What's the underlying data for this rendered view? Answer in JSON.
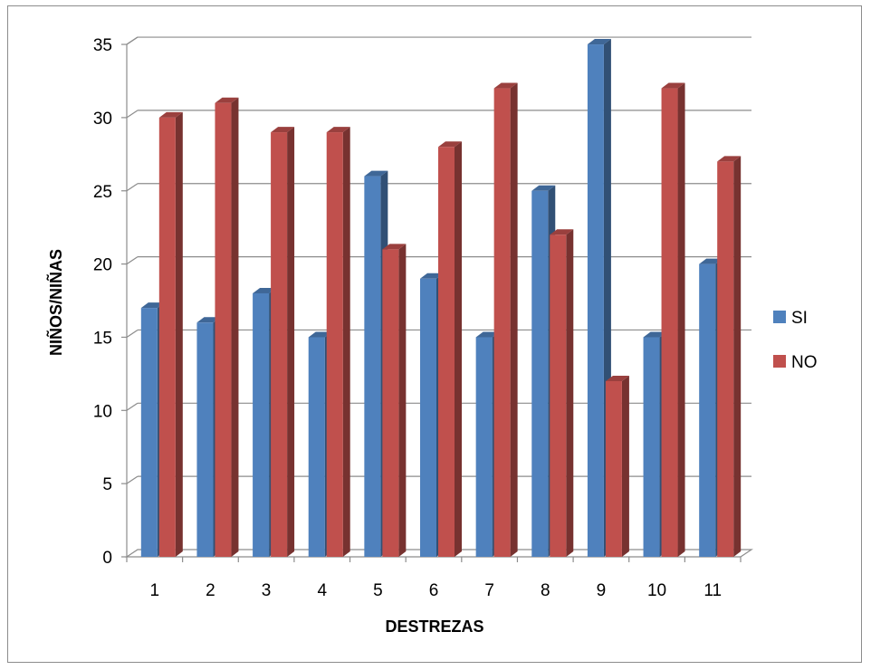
{
  "chart_data": {
    "type": "bar",
    "title": "",
    "xlabel": "DESTREZAS",
    "ylabel": "NIÑOS/NIÑAS",
    "categories": [
      "1",
      "2",
      "3",
      "4",
      "5",
      "6",
      "7",
      "8",
      "9",
      "10",
      "11"
    ],
    "series": [
      {
        "name": "SI",
        "color": "#4f81bd",
        "values": [
          17,
          16,
          18,
          15,
          26,
          19,
          15,
          25,
          35,
          15,
          20
        ]
      },
      {
        "name": "NO",
        "color": "#c0504d",
        "values": [
          30,
          31,
          29,
          29,
          21,
          28,
          32,
          22,
          12,
          32,
          27
        ]
      }
    ],
    "ylim": [
      0,
      35
    ],
    "yticks": [
      "0",
      "5",
      "10",
      "15",
      "20",
      "25",
      "30",
      "35"
    ],
    "grid": true,
    "legend_position": "right",
    "style": "3d-clustered-column"
  }
}
